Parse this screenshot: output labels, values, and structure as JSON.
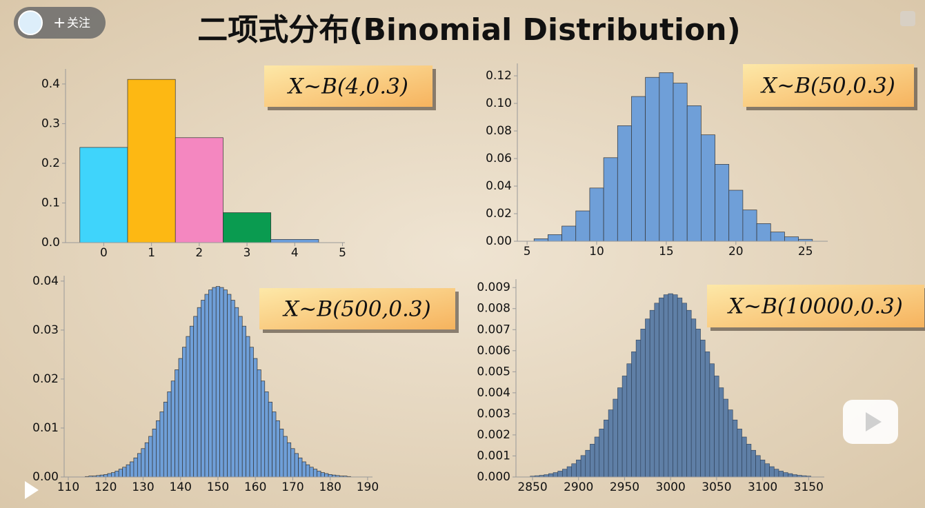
{
  "title": "二项式分布(Binomial Distribution)",
  "follow_button": "关注",
  "chart_data": [
    {
      "type": "bar",
      "annotation": "X~B(4,0.3)",
      "x": [
        0,
        1,
        2,
        3,
        4
      ],
      "values": [
        0.2401,
        0.4116,
        0.2646,
        0.0756,
        0.0081
      ],
      "colors": [
        "#3fd4fb",
        "#fdb813",
        "#f487c0",
        "#0a9b50",
        "#6d9fdc"
      ],
      "xlim": [
        -0.8,
        5.05
      ],
      "xticks": [
        0,
        1,
        2,
        3,
        4,
        5
      ],
      "ylim": [
        0,
        0.438
      ],
      "yticks": [
        {
          "value": 0,
          "label": "0.0"
        },
        0.1,
        0.2,
        0.3,
        0.4
      ]
    },
    {
      "type": "bar",
      "annotation": "X~B(50,0.3)",
      "x": [
        6,
        7,
        8,
        9,
        10,
        11,
        12,
        13,
        14,
        15,
        16,
        17,
        18,
        19,
        20,
        21,
        22,
        23,
        24,
        25
      ],
      "values": [
        0.0018,
        0.0048,
        0.011,
        0.022,
        0.0386,
        0.0606,
        0.0838,
        0.105,
        0.1189,
        0.1223,
        0.1147,
        0.0983,
        0.0772,
        0.0558,
        0.037,
        0.0227,
        0.0128,
        0.0067,
        0.0032,
        0.0014
      ],
      "color": "#6f9fd8",
      "xlim": [
        4.3,
        26.6
      ],
      "xticks": [
        5,
        10,
        15,
        20,
        25
      ],
      "ylim": [
        0,
        0.129
      ],
      "yticks": [
        {
          "value": 0,
          "label": "0.00"
        },
        {
          "value": 0.02,
          "label": "0.02"
        },
        {
          "value": 0.04,
          "label": "0.04"
        },
        {
          "value": 0.06,
          "label": "0.06"
        },
        {
          "value": 0.08,
          "label": "0.08"
        },
        {
          "value": 0.1,
          "label": "0.10"
        },
        {
          "value": 0.12,
          "label": "0.12"
        }
      ]
    },
    {
      "type": "bar",
      "annotation": "X~B(500,0.3)",
      "x": [
        115,
        116,
        117,
        118,
        119,
        120,
        121,
        122,
        123,
        124,
        125,
        126,
        127,
        128,
        129,
        130,
        131,
        132,
        133,
        134,
        135,
        136,
        137,
        138,
        139,
        140,
        141,
        142,
        143,
        144,
        145,
        146,
        147,
        148,
        149,
        150,
        151,
        152,
        153,
        154,
        155,
        156,
        157,
        158,
        159,
        160,
        161,
        162,
        163,
        164,
        165,
        166,
        167,
        168,
        169,
        170,
        171,
        172,
        173,
        174,
        175,
        176,
        177,
        178,
        179,
        180,
        181,
        182,
        183,
        184,
        185
      ],
      "values": [
        0.0001,
        0.0002,
        0.0002,
        0.0003,
        0.0004,
        0.0005,
        0.0007,
        0.0009,
        0.0012,
        0.0016,
        0.002,
        0.0025,
        0.0031,
        0.0039,
        0.0048,
        0.0058,
        0.007,
        0.0083,
        0.0098,
        0.0115,
        0.0133,
        0.0153,
        0.0174,
        0.0196,
        0.0219,
        0.0242,
        0.0265,
        0.0287,
        0.0308,
        0.0328,
        0.0346,
        0.0361,
        0.0373,
        0.0382,
        0.0387,
        0.0389,
        0.0387,
        0.0382,
        0.0373,
        0.0361,
        0.0346,
        0.0328,
        0.0308,
        0.0287,
        0.0265,
        0.0242,
        0.0219,
        0.0196,
        0.0174,
        0.0153,
        0.0133,
        0.0115,
        0.0098,
        0.0083,
        0.007,
        0.0058,
        0.0048,
        0.0039,
        0.0031,
        0.0025,
        0.002,
        0.0016,
        0.0012,
        0.0009,
        0.0007,
        0.0005,
        0.0004,
        0.0003,
        0.0002,
        0.0002,
        0.0001
      ],
      "color": "#6f9fd8",
      "xlim": [
        108.9,
        191.3
      ],
      "xticks": [
        110,
        120,
        130,
        140,
        150,
        160,
        170,
        180,
        190
      ],
      "ylim": [
        0,
        0.0411
      ],
      "yticks": [
        {
          "value": 0,
          "label": "0.00"
        },
        0.01,
        0.02,
        0.03,
        0.04
      ]
    },
    {
      "type": "bar",
      "annotation": "X~B(10000,0.3)",
      "x": [
        2850,
        2855,
        2860,
        2865,
        2870,
        2875,
        2880,
        2885,
        2890,
        2895,
        2900,
        2905,
        2910,
        2915,
        2920,
        2925,
        2930,
        2935,
        2940,
        2945,
        2950,
        2955,
        2960,
        2965,
        2970,
        2975,
        2980,
        2985,
        2990,
        2995,
        3000,
        3005,
        3010,
        3015,
        3020,
        3025,
        3030,
        3035,
        3040,
        3045,
        3050,
        3055,
        3060,
        3065,
        3070,
        3075,
        3080,
        3085,
        3090,
        3095,
        3100,
        3105,
        3110,
        3115,
        3120,
        3125,
        3130,
        3135,
        3140,
        3145,
        3150
      ],
      "values": [
        4e-05,
        6e-05,
        8e-05,
        0.00011,
        0.00016,
        0.00021,
        0.00028,
        0.00037,
        0.00049,
        0.00063,
        0.00081,
        0.00102,
        0.00127,
        0.00156,
        0.0019,
        0.00228,
        0.00271,
        0.00319,
        0.0037,
        0.00424,
        0.0048,
        0.00538,
        0.00595,
        0.00651,
        0.00703,
        0.00751,
        0.00792,
        0.00826,
        0.00851,
        0.00866,
        0.00871,
        0.00866,
        0.00851,
        0.00826,
        0.00792,
        0.00751,
        0.00703,
        0.00651,
        0.00595,
        0.00538,
        0.0048,
        0.00424,
        0.0037,
        0.00319,
        0.00271,
        0.00228,
        0.0019,
        0.00156,
        0.00127,
        0.00102,
        0.00081,
        0.00063,
        0.00049,
        0.00037,
        0.00028,
        0.00021,
        0.00016,
        0.00011,
        8e-05,
        6e-05,
        4e-05
      ],
      "color": "#5f7fa6",
      "xlim": [
        2832,
        3167
      ],
      "xticks": [
        2850,
        2900,
        2950,
        3000,
        3050,
        3100,
        3150
      ],
      "ylim": [
        0,
        0.0094
      ],
      "yticks": [
        {
          "value": 0,
          "label": "0.000"
        },
        {
          "value": 0.001,
          "label": "0.001"
        },
        {
          "value": 0.002,
          "label": "0.002"
        },
        {
          "value": 0.003,
          "label": "0.003"
        },
        {
          "value": 0.004,
          "label": "0.004"
        },
        {
          "value": 0.005,
          "label": "0.005"
        },
        {
          "value": 0.006,
          "label": "0.006"
        },
        {
          "value": 0.007,
          "label": "0.007"
        },
        {
          "value": 0.008,
          "label": "0.008"
        },
        {
          "value": 0.009,
          "label": "0.009"
        }
      ]
    }
  ]
}
